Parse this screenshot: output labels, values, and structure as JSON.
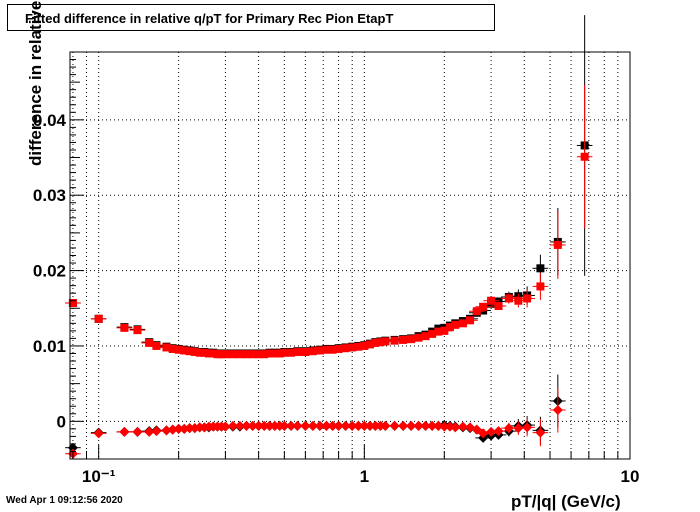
{
  "title": "Fitted difference in relative q/pT for Primary Rec Pion EtapT",
  "timestamp": "Wed Apr  1 09:12:56 2020",
  "chart_data": {
    "type": "scatter",
    "title": "Fitted difference in relative q/pT for Primary Rec Pion EtapT",
    "xlabel": "pT/|q| (GeV/c)",
    "ylabel": "difference in relative q/pT",
    "xscale": "log",
    "xlim": [
      0.078,
      10
    ],
    "ylim": [
      -0.005,
      0.049
    ],
    "grid": true,
    "x_tick_labels": [
      {
        "value": 0.1,
        "text": "10⁻¹"
      },
      {
        "value": 1,
        "text": "1"
      },
      {
        "value": 10,
        "text": "10"
      }
    ],
    "y_tick_labels": [
      {
        "value": 0,
        "text": "0"
      },
      {
        "value": 0.01,
        "text": "0.01"
      },
      {
        "value": 0.02,
        "text": "0.02"
      },
      {
        "value": 0.03,
        "text": "0.03"
      },
      {
        "value": 0.04,
        "text": "0.04"
      }
    ],
    "series": [
      {
        "marker": "square",
        "color": "#000000",
        "x": [
          0.08,
          0.1,
          0.125,
          0.14,
          0.155,
          0.165,
          0.18,
          0.19,
          0.2,
          0.21,
          0.22,
          0.23,
          0.24,
          0.25,
          0.26,
          0.27,
          0.28,
          0.29,
          0.3,
          0.32,
          0.34,
          0.36,
          0.38,
          0.4,
          0.42,
          0.44,
          0.46,
          0.48,
          0.5,
          0.53,
          0.56,
          0.6,
          0.64,
          0.68,
          0.72,
          0.76,
          0.8,
          0.85,
          0.9,
          0.95,
          1.0,
          1.05,
          1.1,
          1.15,
          1.2,
          1.3,
          1.4,
          1.5,
          1.6,
          1.7,
          1.8,
          1.9,
          2.0,
          2.1,
          2.2,
          2.35,
          2.5,
          2.65,
          2.8,
          3.0,
          3.2,
          3.5,
          3.8,
          4.1,
          4.6,
          5.35,
          6.75
        ],
        "y": [
          0.0157,
          0.0136,
          0.0125,
          0.0122,
          0.0105,
          0.0101,
          0.0099,
          0.0097,
          0.0096,
          0.0095,
          0.0094,
          0.0093,
          0.0092,
          0.0092,
          0.0091,
          0.0091,
          0.009,
          0.009,
          0.009,
          0.009,
          0.009,
          0.009,
          0.009,
          0.009,
          0.009,
          0.0091,
          0.0091,
          0.0091,
          0.0092,
          0.0092,
          0.0093,
          0.0093,
          0.0094,
          0.0095,
          0.0096,
          0.0096,
          0.0097,
          0.0098,
          0.0099,
          0.01,
          0.0101,
          0.0103,
          0.0105,
          0.0106,
          0.0107,
          0.0108,
          0.0109,
          0.011,
          0.0113,
          0.0115,
          0.0119,
          0.0123,
          0.0124,
          0.0127,
          0.013,
          0.0133,
          0.0136,
          0.0144,
          0.0147,
          0.0156,
          0.0159,
          0.0165,
          0.0166,
          0.0167,
          0.0203,
          0.0238,
          0.0366
        ],
        "yerr": [
          0,
          0,
          0,
          0,
          0,
          0,
          0,
          0,
          0,
          0,
          0,
          0,
          0,
          0,
          0,
          0,
          0,
          0,
          0,
          0,
          0,
          0,
          0,
          0,
          0,
          0,
          0,
          0,
          0,
          0,
          0,
          0,
          0,
          0,
          0,
          0,
          0,
          0,
          0,
          0,
          0,
          0,
          0,
          0,
          0,
          0,
          0,
          0,
          0,
          0,
          0,
          0,
          0,
          0,
          0,
          0,
          0.0002,
          0.0003,
          0.0003,
          0.0004,
          0.0005,
          0.0007,
          0.0009,
          0.0012,
          0.0018,
          0.0045,
          0.0173
        ]
      },
      {
        "marker": "square",
        "color": "#ff0000",
        "x": [
          0.08,
          0.1,
          0.125,
          0.14,
          0.155,
          0.165,
          0.18,
          0.19,
          0.2,
          0.21,
          0.22,
          0.23,
          0.24,
          0.25,
          0.26,
          0.27,
          0.28,
          0.29,
          0.3,
          0.32,
          0.34,
          0.36,
          0.38,
          0.4,
          0.42,
          0.44,
          0.46,
          0.48,
          0.5,
          0.53,
          0.56,
          0.6,
          0.64,
          0.68,
          0.72,
          0.76,
          0.8,
          0.85,
          0.9,
          0.95,
          1.0,
          1.05,
          1.1,
          1.15,
          1.2,
          1.3,
          1.4,
          1.5,
          1.6,
          1.7,
          1.8,
          1.9,
          2.0,
          2.1,
          2.2,
          2.35,
          2.5,
          2.65,
          2.8,
          3.0,
          3.2,
          3.5,
          3.8,
          4.1,
          4.6,
          5.35,
          6.75
        ],
        "y": [
          0.0157,
          0.0136,
          0.0124,
          0.0121,
          0.0104,
          0.01,
          0.0098,
          0.0096,
          0.0095,
          0.0094,
          0.0093,
          0.0092,
          0.0091,
          0.0091,
          0.009,
          0.009,
          0.0089,
          0.0089,
          0.0089,
          0.0089,
          0.0089,
          0.0089,
          0.0089,
          0.0089,
          0.0089,
          0.009,
          0.009,
          0.009,
          0.0091,
          0.0091,
          0.0092,
          0.0092,
          0.0093,
          0.0094,
          0.0095,
          0.0095,
          0.0096,
          0.0097,
          0.0098,
          0.0099,
          0.01,
          0.0102,
          0.0104,
          0.0105,
          0.0106,
          0.0107,
          0.0108,
          0.0109,
          0.0111,
          0.0113,
          0.0116,
          0.0119,
          0.012,
          0.0125,
          0.0128,
          0.013,
          0.0134,
          0.0146,
          0.0152,
          0.016,
          0.0153,
          0.0163,
          0.016,
          0.0163,
          0.0179,
          0.0234,
          0.0351
        ],
        "yerr": [
          0,
          0,
          0,
          0,
          0,
          0,
          0,
          0,
          0,
          0,
          0,
          0,
          0,
          0,
          0,
          0,
          0,
          0,
          0,
          0,
          0,
          0,
          0,
          0,
          0,
          0,
          0,
          0,
          0,
          0,
          0,
          0,
          0,
          0,
          0,
          0,
          0,
          0,
          0,
          0,
          0,
          0,
          0,
          0,
          0,
          0,
          0,
          0,
          0,
          0,
          0,
          0,
          0,
          0,
          0,
          0,
          0.0002,
          0.0003,
          0.0003,
          0.0004,
          0.0005,
          0.0007,
          0.0009,
          0.0012,
          0.0018,
          0.0045,
          0.0095
        ]
      },
      {
        "marker": "diamond",
        "color": "#000000",
        "x": [
          0.08,
          0.1,
          0.125,
          0.14,
          0.155,
          0.165,
          0.18,
          0.19,
          0.2,
          0.21,
          0.22,
          0.23,
          0.24,
          0.25,
          0.26,
          0.27,
          0.28,
          0.29,
          0.3,
          0.32,
          0.34,
          0.36,
          0.38,
          0.4,
          0.42,
          0.44,
          0.46,
          0.48,
          0.5,
          0.53,
          0.56,
          0.6,
          0.64,
          0.68,
          0.72,
          0.76,
          0.8,
          0.85,
          0.9,
          0.95,
          1.0,
          1.05,
          1.1,
          1.15,
          1.2,
          1.3,
          1.4,
          1.5,
          1.6,
          1.7,
          1.8,
          1.9,
          2.0,
          2.1,
          2.2,
          2.35,
          2.5,
          2.65,
          2.8,
          3.0,
          3.2,
          3.5,
          3.8,
          4.1,
          4.6,
          5.35
        ],
        "y": [
          -0.0035,
          -0.0015,
          -0.0014,
          -0.0014,
          -0.0013,
          -0.0012,
          -0.0012,
          -0.0011,
          -0.001,
          -0.001,
          -0.0009,
          -0.0009,
          -0.0008,
          -0.0008,
          -0.0008,
          -0.0007,
          -0.0007,
          -0.0007,
          -0.0007,
          -0.0007,
          -0.0007,
          -0.0006,
          -0.0006,
          -0.0006,
          -0.0006,
          -0.0006,
          -0.0006,
          -0.0006,
          -0.0006,
          -0.0006,
          -0.0006,
          -0.0006,
          -0.0006,
          -0.0006,
          -0.0006,
          -0.0006,
          -0.0006,
          -0.0006,
          -0.0006,
          -0.0006,
          -0.0006,
          -0.0006,
          -0.0006,
          -0.0006,
          -0.0006,
          -0.0006,
          -0.0006,
          -0.0006,
          -0.0006,
          -0.0006,
          -0.0006,
          -0.0006,
          -0.0005,
          -0.0006,
          -0.0007,
          -0.0008,
          -0.0009,
          -0.0011,
          -0.0022,
          -0.0019,
          -0.0018,
          -0.0013,
          -0.0006,
          -0.0005,
          -0.0012,
          0.0027
        ],
        "yerr": [
          0,
          0,
          0,
          0,
          0,
          0,
          0,
          0,
          0,
          0,
          0,
          0,
          0,
          0,
          0,
          0,
          0,
          0,
          0,
          0,
          0,
          0,
          0,
          0,
          0,
          0,
          0,
          0,
          0,
          0,
          0,
          0,
          0,
          0,
          0,
          0,
          0,
          0,
          0,
          0,
          0,
          0,
          0,
          0,
          0,
          0,
          0,
          0,
          0,
          0,
          0,
          0,
          0,
          0,
          0,
          0.0002,
          0.0003,
          0.0003,
          0.0004,
          0.0005,
          0.0006,
          0.0007,
          0.0009,
          0.0012,
          0.0018,
          0.0035
        ]
      },
      {
        "marker": "diamond",
        "color": "#ff0000",
        "x": [
          0.08,
          0.1,
          0.125,
          0.14,
          0.155,
          0.165,
          0.18,
          0.19,
          0.2,
          0.21,
          0.22,
          0.23,
          0.24,
          0.25,
          0.26,
          0.27,
          0.28,
          0.29,
          0.3,
          0.32,
          0.34,
          0.36,
          0.38,
          0.4,
          0.42,
          0.44,
          0.46,
          0.48,
          0.5,
          0.53,
          0.56,
          0.6,
          0.64,
          0.68,
          0.72,
          0.76,
          0.8,
          0.85,
          0.9,
          0.95,
          1.0,
          1.05,
          1.1,
          1.15,
          1.2,
          1.3,
          1.4,
          1.5,
          1.6,
          1.7,
          1.8,
          1.9,
          2.0,
          2.1,
          2.2,
          2.35,
          2.5,
          2.65,
          2.8,
          3.0,
          3.2,
          3.5,
          3.8,
          4.1,
          4.6,
          5.35
        ],
        "y": [
          -0.0043,
          -0.0016,
          -0.0014,
          -0.0014,
          -0.0014,
          -0.0013,
          -0.0012,
          -0.0011,
          -0.001,
          -0.001,
          -0.0009,
          -0.0009,
          -0.0008,
          -0.0008,
          -0.0007,
          -0.0007,
          -0.0007,
          -0.0007,
          -0.0007,
          -0.0006,
          -0.0006,
          -0.0006,
          -0.0006,
          -0.0006,
          -0.0006,
          -0.0006,
          -0.0006,
          -0.0006,
          -0.0006,
          -0.0006,
          -0.0006,
          -0.0006,
          -0.0006,
          -0.0006,
          -0.0006,
          -0.0006,
          -0.0006,
          -0.0006,
          -0.0006,
          -0.0006,
          -0.0006,
          -0.0006,
          -0.0006,
          -0.0006,
          -0.0006,
          -0.0006,
          -0.0006,
          -0.0006,
          -0.0006,
          -0.0006,
          -0.0006,
          -0.0006,
          -0.0007,
          -0.0007,
          -0.0008,
          -0.0007,
          -0.0008,
          -0.0011,
          -0.0016,
          -0.0014,
          -0.0013,
          -0.0009,
          -0.0009,
          -0.0008,
          -0.0015,
          0.0015
        ],
        "yerr": [
          0,
          0,
          0,
          0,
          0,
          0,
          0,
          0,
          0,
          0,
          0,
          0,
          0,
          0,
          0,
          0,
          0,
          0,
          0,
          0,
          0,
          0,
          0,
          0,
          0,
          0,
          0,
          0,
          0,
          0,
          0,
          0,
          0,
          0,
          0,
          0,
          0,
          0,
          0,
          0,
          0,
          0,
          0,
          0,
          0,
          0,
          0,
          0,
          0,
          0,
          0,
          0,
          0,
          0,
          0,
          0.0002,
          0.0003,
          0.0003,
          0.0004,
          0.0005,
          0.0006,
          0.0007,
          0.0009,
          0.0012,
          0.0018,
          0.003
        ]
      }
    ]
  }
}
